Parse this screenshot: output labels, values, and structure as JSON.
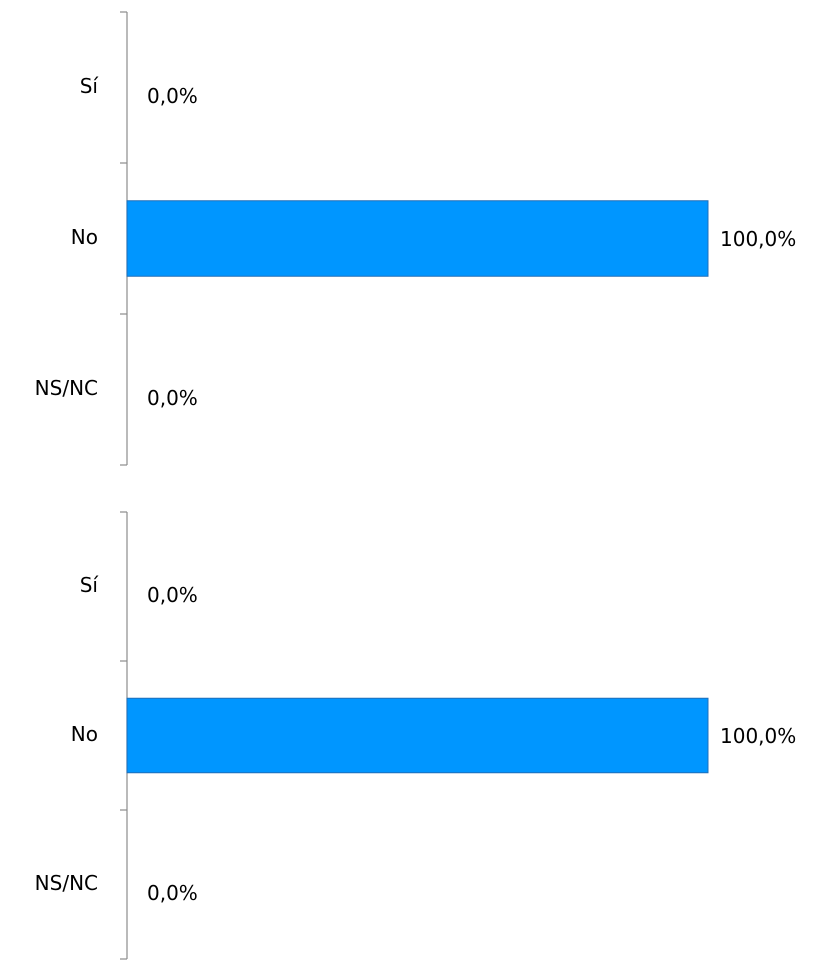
{
  "chart_data": [
    {
      "type": "bar",
      "orientation": "horizontal",
      "categories": [
        "Sí",
        "No",
        "NS/NC"
      ],
      "values": [
        0,
        100,
        0
      ],
      "value_labels": [
        "0,0%",
        "100,0%",
        "0,0%"
      ],
      "color": "#0096ff"
    },
    {
      "type": "bar",
      "orientation": "horizontal",
      "categories": [
        "Sí",
        "No",
        "NS/NC"
      ],
      "values": [
        0,
        100,
        0
      ],
      "value_labels": [
        "0,0%",
        "100,0%",
        "0,0%"
      ],
      "color": "#0096ff"
    }
  ]
}
